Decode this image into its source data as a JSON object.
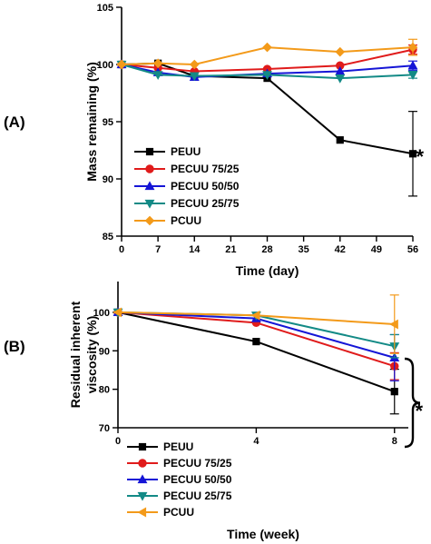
{
  "chart_data": [
    {
      "panel_label": "(A)",
      "type": "line",
      "xlabel": "Time (day)",
      "ylabel": "Mass remaining (%)",
      "xlim": [
        0,
        56
      ],
      "ylim": [
        85,
        105
      ],
      "xticks": [
        0,
        7,
        14,
        21,
        28,
        35,
        42,
        49,
        56
      ],
      "yticks": [
        85,
        90,
        95,
        100,
        105
      ],
      "significance": "*",
      "series": [
        {
          "name": "PEUU",
          "color": "#000000",
          "marker": "square",
          "x": [
            0,
            7,
            14,
            28,
            42,
            56
          ],
          "y": [
            100,
            100.1,
            99.0,
            98.8,
            93.4,
            92.2
          ],
          "err": [
            0,
            0,
            0,
            0,
            0,
            3.7
          ]
        },
        {
          "name": "PECUU 75/25",
          "color": "#e01b1b",
          "marker": "circle",
          "x": [
            0,
            7,
            14,
            28,
            42,
            56
          ],
          "y": [
            100,
            99.7,
            99.4,
            99.6,
            99.9,
            101.3
          ],
          "err": [
            0,
            0,
            0,
            0,
            0,
            0.4
          ]
        },
        {
          "name": "PECUU 50/50",
          "color": "#1515d6",
          "marker": "triangle-up",
          "x": [
            0,
            7,
            14,
            28,
            42,
            56
          ],
          "y": [
            100,
            99.3,
            98.9,
            99.2,
            99.4,
            99.9
          ],
          "err": [
            0,
            0,
            0,
            0,
            0,
            0.4
          ]
        },
        {
          "name": "PECUU 25/75",
          "color": "#138a86",
          "marker": "triangle-down",
          "x": [
            0,
            7,
            14,
            28,
            42,
            56
          ],
          "y": [
            100,
            99.1,
            99.0,
            99.1,
            98.8,
            99.1
          ],
          "err": [
            0,
            0,
            0,
            0,
            0,
            0.3
          ]
        },
        {
          "name": "PCUU",
          "color": "#f39a1a",
          "marker": "diamond",
          "x": [
            0,
            7,
            14,
            28,
            42,
            56
          ],
          "y": [
            100,
            100.1,
            100.0,
            101.5,
            101.1,
            101.5
          ],
          "err": [
            0,
            0,
            0,
            0,
            0,
            0.7
          ]
        }
      ]
    },
    {
      "panel_label": "(B)",
      "type": "line",
      "xlabel": "Time (week)",
      "ylabel": "Residual inherent viscosity (%)",
      "ylabel_lines": [
        "Residual inherent",
        "viscosity (%)"
      ],
      "xlim": [
        0,
        8.4
      ],
      "ylim": [
        70,
        108
      ],
      "xticks": [
        0,
        4,
        8
      ],
      "yticks": [
        70,
        80,
        90,
        100
      ],
      "significance": "*",
      "series": [
        {
          "name": "PEUU",
          "color": "#000000",
          "marker": "square",
          "x": [
            0,
            4,
            8
          ],
          "y": [
            100,
            92.4,
            79.4
          ],
          "err": [
            0,
            0,
            5.8
          ]
        },
        {
          "name": "PECUU 75/25",
          "color": "#e01b1b",
          "marker": "circle",
          "x": [
            0,
            4,
            8
          ],
          "y": [
            100,
            97.3,
            86.0
          ],
          "err": [
            0,
            0,
            3.5
          ]
        },
        {
          "name": "PECUU 50/50",
          "color": "#1515d6",
          "marker": "triangle-up",
          "x": [
            0,
            4,
            8
          ],
          "y": [
            100,
            98.4,
            88.2
          ],
          "err": [
            0,
            0,
            6.0
          ]
        },
        {
          "name": "PECUU 25/75",
          "color": "#138a86",
          "marker": "triangle-down",
          "x": [
            0,
            4,
            8
          ],
          "y": [
            100,
            99.2,
            91.2
          ],
          "err": [
            0,
            0,
            3.0
          ]
        },
        {
          "name": "PCUU",
          "color": "#f39a1a",
          "marker": "triangle-left",
          "x": [
            0,
            4,
            8
          ],
          "y": [
            100,
            99.2,
            96.9
          ],
          "err": [
            0,
            0,
            7.6
          ]
        }
      ]
    }
  ]
}
